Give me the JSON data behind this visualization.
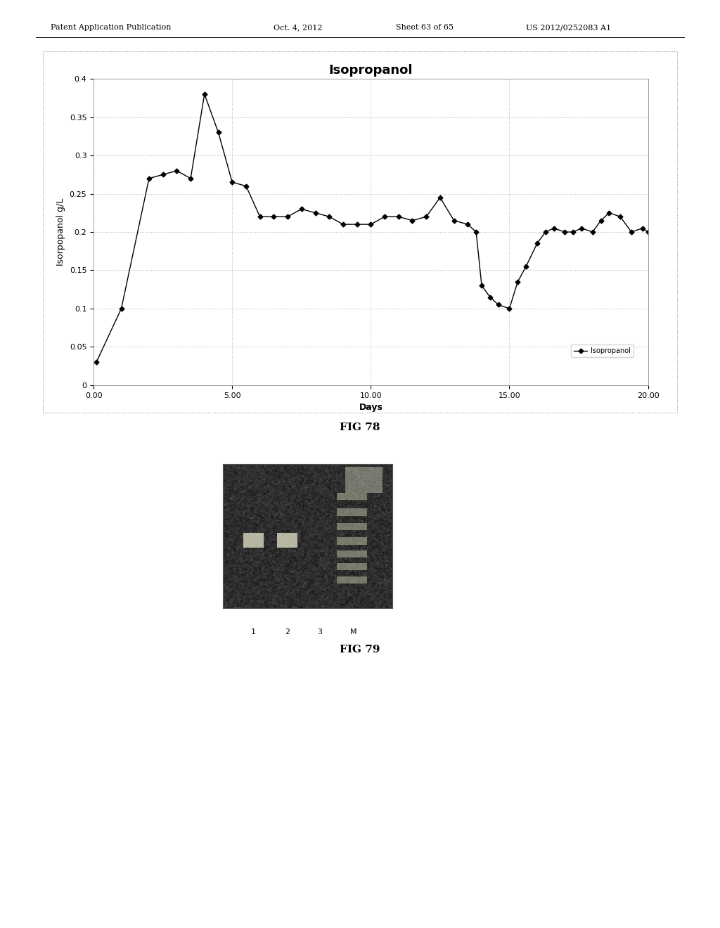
{
  "title": "Isopropanol",
  "xlabel": "Days",
  "ylabel": "Isorpopanol g/L",
  "legend_label": "Isopropanol",
  "xlim": [
    0,
    20
  ],
  "ylim": [
    0,
    0.4
  ],
  "xticks": [
    0.0,
    5.0,
    10.0,
    15.0,
    20.0
  ],
  "yticks": [
    0,
    0.05,
    0.1,
    0.15,
    0.2,
    0.25,
    0.3,
    0.35,
    0.4
  ],
  "xtick_labels": [
    "0.00",
    "5.00",
    "10.00",
    "15.00",
    "20.00"
  ],
  "ytick_labels": [
    "0",
    "0.05",
    "0.1",
    "0.15",
    "0.2",
    "0.25",
    "0.3",
    "0.35",
    "0.4"
  ],
  "x_data": [
    0.1,
    1.0,
    2.0,
    2.5,
    3.0,
    3.5,
    4.0,
    4.5,
    5.0,
    5.5,
    6.0,
    6.5,
    7.0,
    7.5,
    8.0,
    8.5,
    9.0,
    9.5,
    10.0,
    10.5,
    11.0,
    11.5,
    12.0,
    12.5,
    13.0,
    13.5,
    13.8,
    14.0,
    14.3,
    14.6,
    15.0,
    15.3,
    15.6,
    16.0,
    16.3,
    16.6,
    17.0,
    17.3,
    17.6,
    18.0,
    18.3,
    18.6,
    19.0,
    19.4,
    19.8,
    20.0
  ],
  "y_data": [
    0.03,
    0.1,
    0.27,
    0.275,
    0.28,
    0.27,
    0.38,
    0.33,
    0.265,
    0.26,
    0.22,
    0.22,
    0.22,
    0.23,
    0.225,
    0.22,
    0.21,
    0.21,
    0.21,
    0.22,
    0.22,
    0.215,
    0.22,
    0.245,
    0.215,
    0.21,
    0.2,
    0.13,
    0.115,
    0.105,
    0.1,
    0.135,
    0.155,
    0.185,
    0.2,
    0.205,
    0.2,
    0.2,
    0.205,
    0.2,
    0.215,
    0.225,
    0.22,
    0.2,
    0.205,
    0.2
  ],
  "line_color": "#000000",
  "marker": "D",
  "marker_size": 3.5,
  "line_width": 1.0,
  "grid_color": "#aaaaaa",
  "plot_bg_color": "#ffffff",
  "fig_caption_78": "FIG 78",
  "fig_caption_79": "FIG 79",
  "header_left": "Patent Application Publication",
  "header_center": "Oct. 4, 2012",
  "header_sheet": "Sheet 63 of 65",
  "header_right": "US 2012/0252083 A1",
  "title_fontsize": 13,
  "axis_fontsize": 9,
  "tick_fontsize": 8,
  "caption_fontsize": 11
}
